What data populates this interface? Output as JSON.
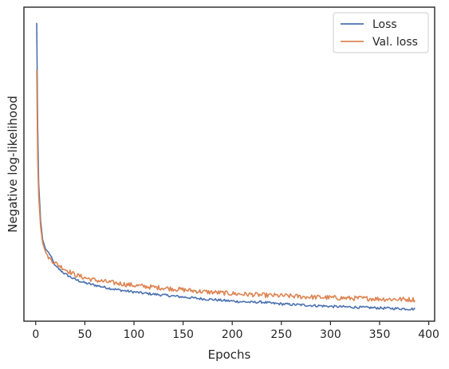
{
  "chart_data": {
    "type": "line",
    "title": "",
    "xlabel": "Epochs",
    "ylabel": "Negative log-likelihood",
    "xlim": [
      -12,
      406
    ],
    "ylim": [
      0,
      100
    ],
    "y_ticks_labeled": false,
    "x_ticks": [
      0,
      50,
      100,
      150,
      200,
      250,
      300,
      350,
      400
    ],
    "grid": false,
    "legend_position": "top-right",
    "series": [
      {
        "name": "Loss",
        "color": "#4c72b0",
        "points": [
          [
            1,
            95.0
          ],
          [
            2,
            62.0
          ],
          [
            3,
            44.0
          ],
          [
            5,
            32.0
          ],
          [
            7,
            26.0
          ],
          [
            10,
            23.0
          ],
          [
            14,
            21.5
          ],
          [
            20,
            17.5
          ],
          [
            30,
            15.0
          ],
          [
            40,
            13.3
          ],
          [
            50,
            12.2
          ],
          [
            60,
            11.5
          ],
          [
            70,
            10.8
          ],
          [
            80,
            10.2
          ],
          [
            90,
            9.7
          ],
          [
            100,
            9.3
          ],
          [
            110,
            8.9
          ],
          [
            120,
            8.6
          ],
          [
            130,
            8.3
          ],
          [
            140,
            8.0
          ],
          [
            150,
            7.7
          ],
          [
            160,
            7.4
          ],
          [
            170,
            7.1
          ],
          [
            180,
            6.9
          ],
          [
            190,
            6.6
          ],
          [
            200,
            6.4
          ],
          [
            210,
            6.2
          ],
          [
            220,
            6.0
          ],
          [
            230,
            6.1
          ],
          [
            240,
            5.7
          ],
          [
            250,
            5.5
          ],
          [
            260,
            5.3
          ],
          [
            270,
            5.2
          ],
          [
            280,
            5.0
          ],
          [
            290,
            4.9
          ],
          [
            300,
            4.7
          ],
          [
            310,
            4.6
          ],
          [
            320,
            4.5
          ],
          [
            330,
            4.4
          ],
          [
            340,
            4.3
          ],
          [
            350,
            4.2
          ],
          [
            360,
            4.1
          ],
          [
            370,
            4.0
          ],
          [
            380,
            3.9
          ],
          [
            386,
            3.9
          ]
        ]
      },
      {
        "name": "Val. loss",
        "color": "#dd8452",
        "points": [
          [
            1,
            80.0
          ],
          [
            2,
            52.0
          ],
          [
            3,
            40.0
          ],
          [
            5,
            30.0
          ],
          [
            7,
            25.0
          ],
          [
            10,
            22.0
          ],
          [
            14,
            20.0
          ],
          [
            20,
            18.5
          ],
          [
            30,
            16.5
          ],
          [
            40,
            14.8
          ],
          [
            50,
            13.8
          ],
          [
            60,
            13.1
          ],
          [
            70,
            12.6
          ],
          [
            80,
            12.2
          ],
          [
            90,
            11.8
          ],
          [
            100,
            11.4
          ],
          [
            110,
            11.1
          ],
          [
            120,
            10.8
          ],
          [
            130,
            10.6
          ],
          [
            140,
            10.3
          ],
          [
            150,
            10.0
          ],
          [
            160,
            9.7
          ],
          [
            170,
            9.4
          ],
          [
            180,
            9.2
          ],
          [
            190,
            9.0
          ],
          [
            200,
            8.8
          ],
          [
            210,
            8.6
          ],
          [
            220,
            8.5
          ],
          [
            230,
            8.3
          ],
          [
            240,
            8.2
          ],
          [
            250,
            8.1
          ],
          [
            260,
            8.0
          ],
          [
            270,
            7.8
          ],
          [
            280,
            7.7
          ],
          [
            290,
            7.6
          ],
          [
            300,
            7.5
          ],
          [
            310,
            7.4
          ],
          [
            320,
            7.3
          ],
          [
            330,
            7.3
          ],
          [
            340,
            7.2
          ],
          [
            350,
            7.1
          ],
          [
            360,
            7.0
          ],
          [
            370,
            7.0
          ],
          [
            380,
            6.9
          ],
          [
            386,
            6.9
          ]
        ]
      }
    ]
  }
}
